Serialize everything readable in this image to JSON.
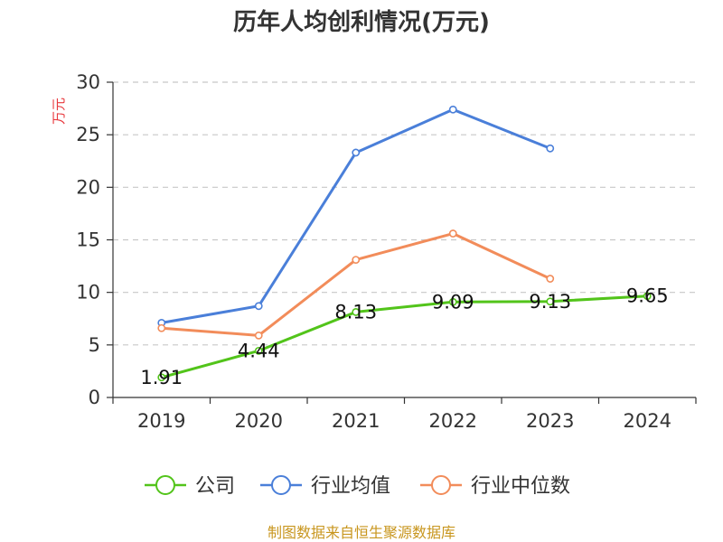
{
  "chart_data": {
    "type": "line",
    "title": "历年人均创利情况(万元)",
    "ylabel": "万元",
    "xlabel": "",
    "categories": [
      "2019",
      "2020",
      "2021",
      "2022",
      "2023",
      "2024"
    ],
    "ylim": [
      0,
      30
    ],
    "yticks": [
      0,
      5,
      10,
      15,
      20,
      25,
      30
    ],
    "grid": true,
    "legend_position": "bottom",
    "series": [
      {
        "name": "公司",
        "color": "#52c41a",
        "values": [
          1.91,
          4.44,
          8.13,
          9.09,
          9.13,
          9.65
        ],
        "labels": [
          "1.91",
          "4.44",
          "8.13",
          "9.09",
          "9.13",
          "9.65"
        ]
      },
      {
        "name": "行业均值",
        "color": "#4a7fd9",
        "values": [
          7.1,
          8.7,
          23.3,
          27.4,
          23.7,
          null
        ]
      },
      {
        "name": "行业中位数",
        "color": "#f28c5a",
        "values": [
          6.6,
          5.9,
          13.1,
          15.6,
          11.3,
          null
        ]
      }
    ]
  },
  "footer": {
    "source": "制图数据来自恒生聚源数据库"
  }
}
